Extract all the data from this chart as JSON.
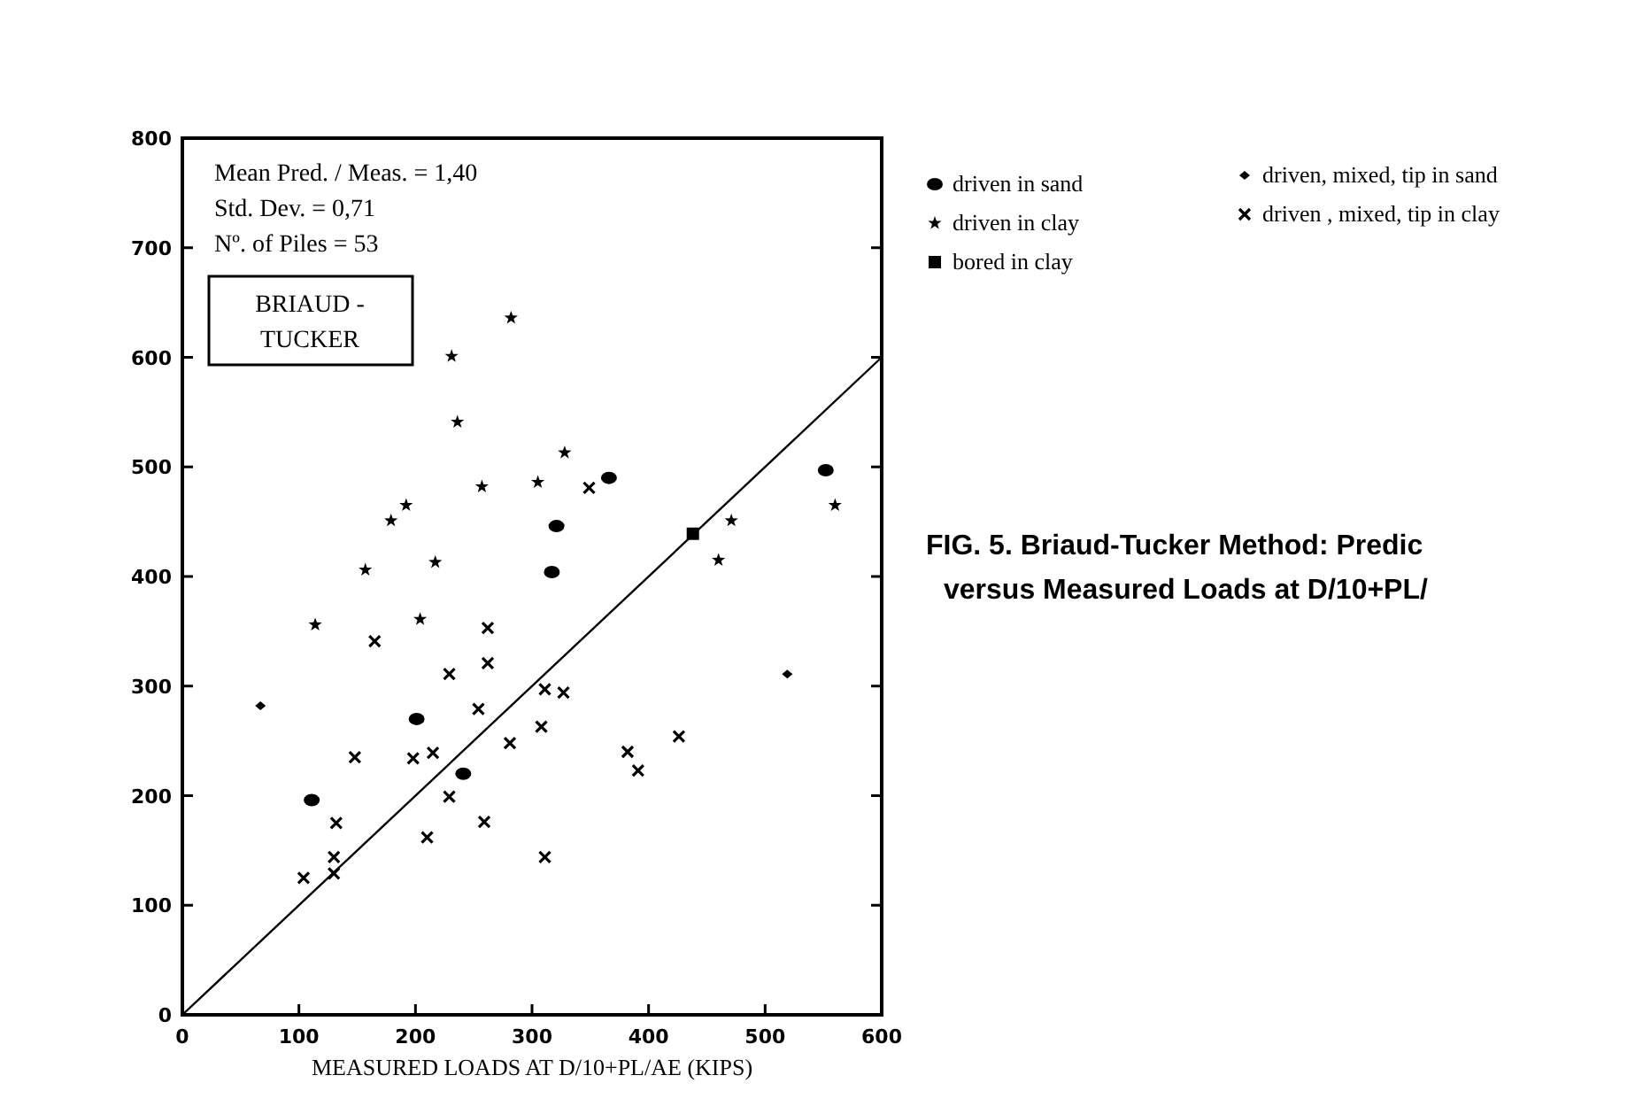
{
  "chart_data": {
    "type": "scatter",
    "title": "FIG. 5. Briaud-Tucker Method: Predic\nversus Measured Loads at D/10+PL/",
    "xlabel": "MEASURED LOADS AT D/10+PL/AE (KIPS)",
    "annotations": [
      "Mean Pred. / Meas. = 1,40",
      "Std. Dev. = 0,71",
      "Nº. of Piles = 53",
      "BRIAUD -\nTUCKER"
    ],
    "xlim": [
      0,
      600
    ],
    "xticks": [
      0,
      100,
      200,
      300,
      400,
      500,
      600
    ],
    "ylim": [
      0,
      800
    ],
    "yticks": [
      0,
      100,
      200,
      300,
      400,
      500,
      600,
      700,
      800
    ],
    "grid": false,
    "legend": "right",
    "series": [
      {
        "name": "driven in sand",
        "color": "#000000",
        "marker": "circle",
        "x": [
          366,
          321,
          317,
          552,
          201,
          241,
          111
        ],
        "values": [
          490,
          446,
          404,
          497,
          270,
          220,
          196
        ]
      },
      {
        "name": "driven in clay",
        "color": "#000000",
        "marker": "star",
        "x": [
          282,
          231,
          236,
          257,
          192,
          179,
          157,
          217,
          114,
          204,
          328,
          305,
          471,
          460,
          560
        ],
        "values": [
          636,
          601,
          541,
          482,
          465,
          451,
          406,
          413,
          356,
          361,
          513,
          486,
          451,
          415,
          465
        ]
      },
      {
        "name": "bored in clay",
        "color": "#000000",
        "marker": "square",
        "x": [
          438
        ],
        "values": [
          439
        ]
      },
      {
        "name": "driven, mixed, tip in sand",
        "color": "#000000",
        "marker": "diamond",
        "x": [
          67,
          519
        ],
        "values": [
          282,
          311
        ]
      },
      {
        "name": "driven , mixed, tip in clay",
        "color": "#000000",
        "marker": "cross",
        "x": [
          165,
          262,
          349,
          262,
          229,
          254,
          281,
          148,
          198,
          215,
          229,
          132,
          259,
          210,
          130,
          130,
          104,
          311,
          327,
          308,
          382,
          391,
          426,
          311
        ],
        "values": [
          341,
          353,
          481,
          321,
          311,
          279,
          248,
          235,
          234,
          239,
          199,
          175,
          176,
          162,
          144,
          129,
          125,
          297,
          294,
          263,
          240,
          223,
          254,
          144
        ]
      },
      {
        "type": "line",
        "color": "#000000",
        "marker": "none",
        "line_style": "solid",
        "x": [
          0,
          600
        ],
        "values": [
          0,
          600
        ]
      }
    ]
  }
}
